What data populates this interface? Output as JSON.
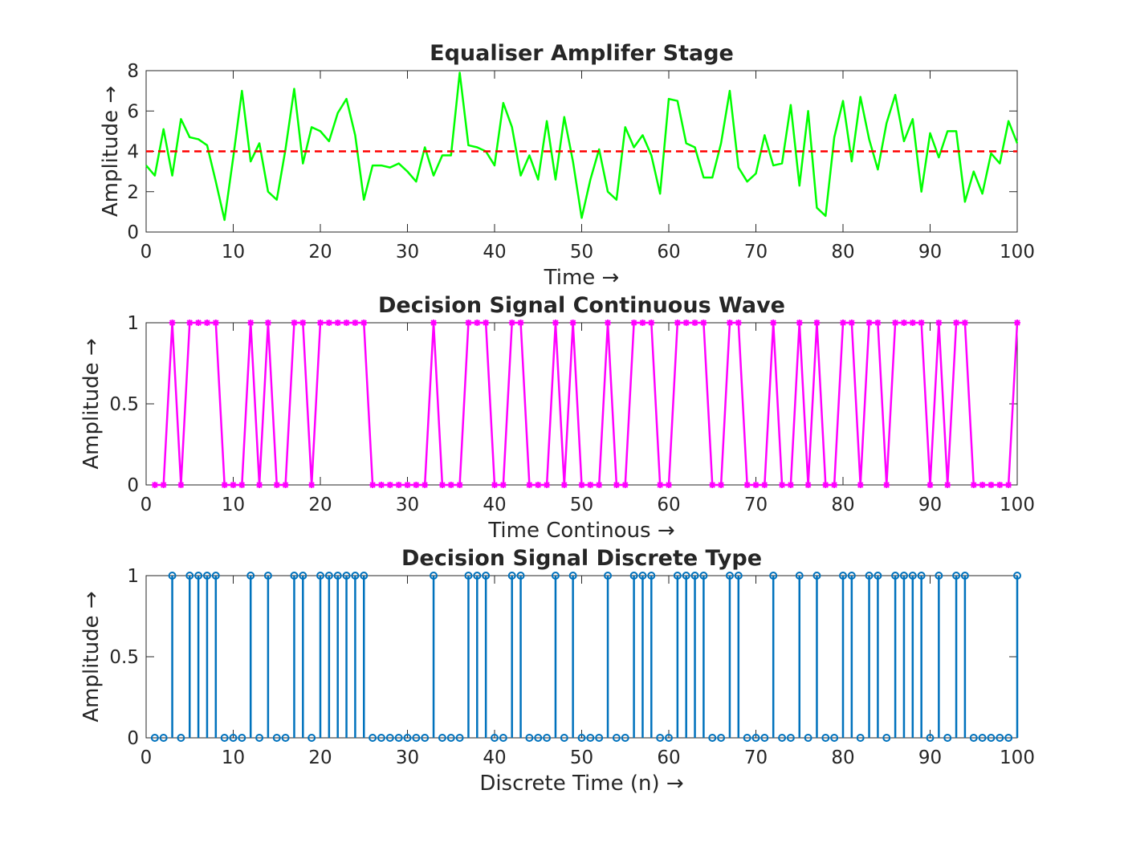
{
  "chart_data": [
    {
      "type": "line",
      "title": "Equaliser Amplifer Stage",
      "xlabel": "Time →",
      "ylabel": "Amplitude →",
      "xlim": [
        0,
        100
      ],
      "ylim": [
        0,
        8
      ],
      "xticks": [
        0,
        10,
        20,
        30,
        40,
        50,
        60,
        70,
        80,
        90,
        100
      ],
      "yticks": [
        0,
        2,
        4,
        6,
        8
      ],
      "series": [
        {
          "color": "#00ff00",
          "style": "solid",
          "x": [
            0,
            1,
            2,
            3,
            4,
            5,
            6,
            7,
            8,
            9,
            10,
            11,
            12,
            13,
            14,
            15,
            16,
            17,
            18,
            19,
            20,
            21,
            22,
            23,
            24,
            25,
            26,
            27,
            28,
            29,
            30,
            31,
            32,
            33,
            34,
            35,
            36,
            37,
            38,
            39,
            40,
            41,
            42,
            43,
            44,
            45,
            46,
            47,
            48,
            49,
            50,
            51,
            52,
            53,
            54,
            55,
            56,
            57,
            58,
            59,
            60,
            61,
            62,
            63,
            64,
            65,
            66,
            67,
            68,
            69,
            70,
            71,
            72,
            73,
            74,
            75,
            76,
            77,
            78,
            79,
            80,
            81,
            82,
            83,
            84,
            85,
            86,
            87,
            88,
            89,
            90,
            91,
            92,
            93,
            94,
            95,
            96,
            97,
            98,
            99,
            100
          ],
          "values": [
            3.3,
            2.8,
            5.1,
            2.8,
            5.6,
            4.7,
            4.6,
            4.3,
            2.5,
            0.6,
            3.7,
            7.0,
            3.5,
            4.4,
            2.0,
            1.6,
            4.1,
            7.1,
            3.4,
            5.2,
            5.0,
            4.5,
            5.9,
            6.6,
            4.8,
            1.6,
            3.3,
            3.3,
            3.2,
            3.4,
            3.0,
            2.5,
            4.2,
            2.8,
            3.8,
            3.8,
            7.9,
            4.3,
            4.2,
            4.0,
            3.3,
            6.4,
            5.2,
            2.8,
            3.8,
            2.6,
            5.5,
            2.6,
            5.7,
            3.5,
            0.7,
            2.6,
            4.1,
            2.0,
            1.6,
            5.2,
            4.2,
            4.8,
            3.8,
            1.9,
            6.6,
            6.5,
            4.4,
            4.2,
            2.7,
            2.7,
            4.4,
            7.0,
            3.2,
            2.5,
            2.9,
            4.8,
            3.3,
            3.4,
            6.3,
            2.3,
            6.0,
            1.2,
            0.8,
            4.7,
            6.5,
            3.5,
            6.7,
            4.6,
            3.1,
            5.4,
            6.8,
            4.5,
            5.6,
            2.0,
            4.9,
            3.7,
            5.0,
            5.0,
            1.5,
            3.0,
            1.9,
            3.9,
            3.4,
            5.5,
            4.4
          ]
        },
        {
          "color": "#ff0000",
          "style": "dashed",
          "x": [
            0,
            100
          ],
          "values": [
            4,
            4
          ]
        }
      ]
    },
    {
      "type": "line",
      "title": "Decision Signal Continuous Wave",
      "xlabel": "Time Continous →",
      "ylabel": "Amplitude →",
      "xlim": [
        0,
        100
      ],
      "ylim": [
        0,
        1
      ],
      "xticks": [
        0,
        10,
        20,
        30,
        40,
        50,
        60,
        70,
        80,
        90,
        100
      ],
      "yticks": [
        0,
        0.5,
        1
      ],
      "series": [
        {
          "color": "#ff00ff",
          "marker": "asterisk",
          "x": [
            1,
            2,
            3,
            4,
            5,
            6,
            7,
            8,
            9,
            10,
            11,
            12,
            13,
            14,
            15,
            16,
            17,
            18,
            19,
            20,
            21,
            22,
            23,
            24,
            25,
            26,
            27,
            28,
            29,
            30,
            31,
            32,
            33,
            34,
            35,
            36,
            37,
            38,
            39,
            40,
            41,
            42,
            43,
            44,
            45,
            46,
            47,
            48,
            49,
            50,
            51,
            52,
            53,
            54,
            55,
            56,
            57,
            58,
            59,
            60,
            61,
            62,
            63,
            64,
            65,
            66,
            67,
            68,
            69,
            70,
            71,
            72,
            73,
            74,
            75,
            76,
            77,
            78,
            79,
            80,
            81,
            82,
            83,
            84,
            85,
            86,
            87,
            88,
            89,
            90,
            91,
            92,
            93,
            94,
            95,
            96,
            97,
            98,
            99,
            100
          ],
          "values": [
            0,
            0,
            1,
            0,
            1,
            1,
            1,
            1,
            0,
            0,
            0,
            1,
            0,
            1,
            0,
            0,
            1,
            1,
            0,
            1,
            1,
            1,
            1,
            1,
            1,
            0,
            0,
            0,
            0,
            0,
            0,
            0,
            1,
            0,
            0,
            0,
            1,
            1,
            1,
            0,
            0,
            1,
            1,
            0,
            0,
            0,
            1,
            0,
            1,
            0,
            0,
            0,
            1,
            0,
            0,
            1,
            1,
            1,
            0,
            0,
            1,
            1,
            1,
            1,
            0,
            0,
            1,
            1,
            0,
            0,
            0,
            1,
            0,
            0,
            1,
            0,
            1,
            0,
            0,
            1,
            1,
            0,
            1,
            1,
            0,
            1,
            1,
            1,
            1,
            0,
            1,
            0,
            1,
            1,
            0,
            0,
            0,
            0,
            0,
            1
          ]
        }
      ]
    },
    {
      "type": "stem",
      "title": "Decision Signal Discrete Type",
      "xlabel": "Discrete Time (n) →",
      "ylabel": "Amplitude →",
      "xlim": [
        0,
        100
      ],
      "ylim": [
        0,
        1
      ],
      "xticks": [
        0,
        10,
        20,
        30,
        40,
        50,
        60,
        70,
        80,
        90,
        100
      ],
      "yticks": [
        0,
        0.5,
        1
      ],
      "series": [
        {
          "color": "#0072bd",
          "marker": "circle",
          "x": [
            1,
            2,
            3,
            4,
            5,
            6,
            7,
            8,
            9,
            10,
            11,
            12,
            13,
            14,
            15,
            16,
            17,
            18,
            19,
            20,
            21,
            22,
            23,
            24,
            25,
            26,
            27,
            28,
            29,
            30,
            31,
            32,
            33,
            34,
            35,
            36,
            37,
            38,
            39,
            40,
            41,
            42,
            43,
            44,
            45,
            46,
            47,
            48,
            49,
            50,
            51,
            52,
            53,
            54,
            55,
            56,
            57,
            58,
            59,
            60,
            61,
            62,
            63,
            64,
            65,
            66,
            67,
            68,
            69,
            70,
            71,
            72,
            73,
            74,
            75,
            76,
            77,
            78,
            79,
            80,
            81,
            82,
            83,
            84,
            85,
            86,
            87,
            88,
            89,
            90,
            91,
            92,
            93,
            94,
            95,
            96,
            97,
            98,
            99,
            100
          ],
          "values": [
            0,
            0,
            1,
            0,
            1,
            1,
            1,
            1,
            0,
            0,
            0,
            1,
            0,
            1,
            0,
            0,
            1,
            1,
            0,
            1,
            1,
            1,
            1,
            1,
            1,
            0,
            0,
            0,
            0,
            0,
            0,
            0,
            1,
            0,
            0,
            0,
            1,
            1,
            1,
            0,
            0,
            1,
            1,
            0,
            0,
            0,
            1,
            0,
            1,
            0,
            0,
            0,
            1,
            0,
            0,
            1,
            1,
            1,
            0,
            0,
            1,
            1,
            1,
            1,
            0,
            0,
            1,
            1,
            0,
            0,
            0,
            1,
            0,
            0,
            1,
            0,
            1,
            0,
            0,
            1,
            1,
            0,
            1,
            1,
            0,
            1,
            1,
            1,
            1,
            0,
            1,
            0,
            1,
            1,
            0,
            0,
            0,
            0,
            0,
            1
          ]
        }
      ]
    }
  ]
}
